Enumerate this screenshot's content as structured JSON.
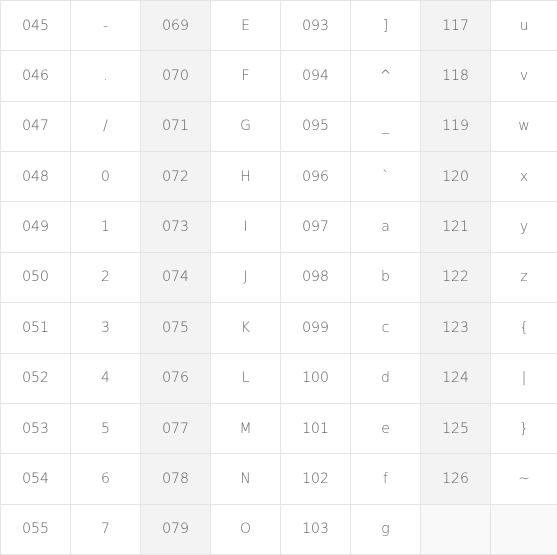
{
  "table": {
    "rows": [
      [
        {
          "code": "045",
          "char": "-"
        },
        {
          "code": "069",
          "char": "E"
        },
        {
          "code": "093",
          "char": "]"
        },
        {
          "code": "117",
          "char": "u"
        }
      ],
      [
        {
          "code": "046",
          "char": "."
        },
        {
          "code": "070",
          "char": "F"
        },
        {
          "code": "094",
          "char": "^"
        },
        {
          "code": "118",
          "char": "v"
        }
      ],
      [
        {
          "code": "047",
          "char": "/"
        },
        {
          "code": "071",
          "char": "G"
        },
        {
          "code": "095",
          "char": "_"
        },
        {
          "code": "119",
          "char": "w"
        }
      ],
      [
        {
          "code": "048",
          "char": "0"
        },
        {
          "code": "072",
          "char": "H"
        },
        {
          "code": "096",
          "char": "`"
        },
        {
          "code": "120",
          "char": "x"
        }
      ],
      [
        {
          "code": "049",
          "char": "1"
        },
        {
          "code": "073",
          "char": "I"
        },
        {
          "code": "097",
          "char": "a"
        },
        {
          "code": "121",
          "char": "y"
        }
      ],
      [
        {
          "code": "050",
          "char": "2"
        },
        {
          "code": "074",
          "char": "J"
        },
        {
          "code": "098",
          "char": "b"
        },
        {
          "code": "122",
          "char": "z"
        }
      ],
      [
        {
          "code": "051",
          "char": "3"
        },
        {
          "code": "075",
          "char": "K"
        },
        {
          "code": "099",
          "char": "c"
        },
        {
          "code": "123",
          "char": "{"
        }
      ],
      [
        {
          "code": "052",
          "char": "4"
        },
        {
          "code": "076",
          "char": "L"
        },
        {
          "code": "100",
          "char": "d"
        },
        {
          "code": "124",
          "char": "|"
        }
      ],
      [
        {
          "code": "053",
          "char": "5"
        },
        {
          "code": "077",
          "char": "M"
        },
        {
          "code": "101",
          "char": "e"
        },
        {
          "code": "125",
          "char": "}"
        }
      ],
      [
        {
          "code": "054",
          "char": "6"
        },
        {
          "code": "078",
          "char": "N"
        },
        {
          "code": "102",
          "char": "f"
        },
        {
          "code": "126",
          "char": "~"
        }
      ],
      [
        {
          "code": "055",
          "char": "7"
        },
        {
          "code": "079",
          "char": "O"
        },
        {
          "code": "103",
          "char": "g"
        },
        {
          "code": "",
          "char": ""
        }
      ]
    ]
  },
  "colors": {
    "border": "#e4e4e4",
    "shaded_column_bg": "#f3f3f3",
    "text": "#555555"
  }
}
